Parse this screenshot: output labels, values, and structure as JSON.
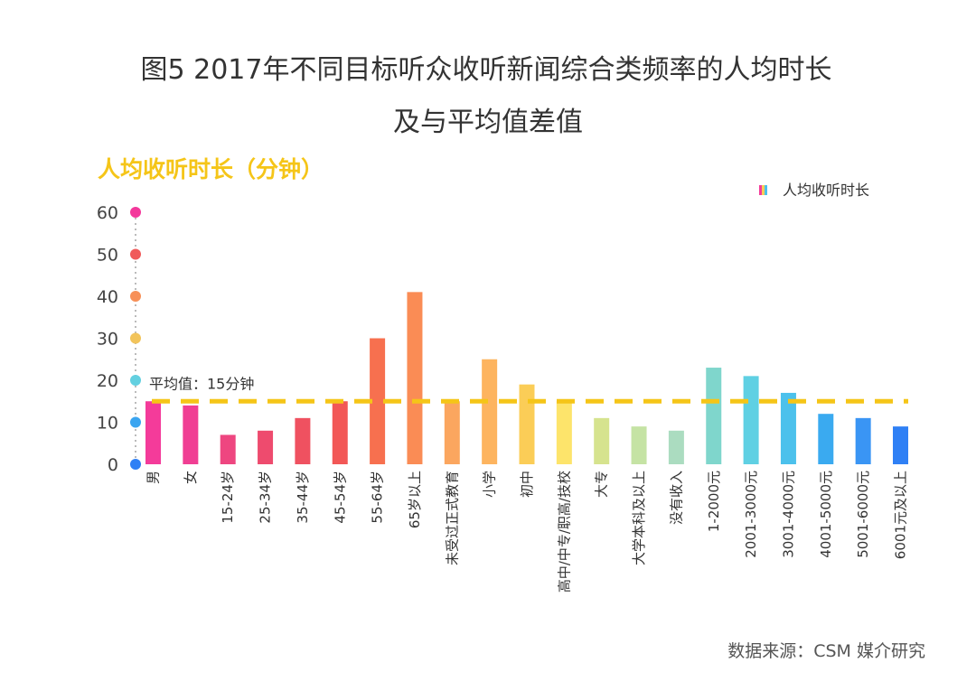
{
  "title_line1": "图5 2017年不同目标听众收听新闻综合类频率的人均时长",
  "title_line2": "及与平均值差值",
  "source": "数据来源：CSM 媒介研究",
  "chart_data": {
    "type": "bar",
    "ylabel": "人均收听时长（分钟）",
    "legend": "人均收听时长",
    "legend_position": "top-right",
    "ylim": [
      0,
      60
    ],
    "yticks": [
      0,
      10,
      20,
      30,
      40,
      50,
      60
    ],
    "ytick_labels": [
      "0",
      "10",
      "20",
      "30",
      "40",
      "50",
      "60"
    ],
    "average": 15,
    "average_label": "平均值：15分钟",
    "categories": [
      "男",
      "女",
      "15-24岁",
      "25-34岁",
      "35-44岁",
      "45-54岁",
      "55-64岁",
      "65岁以上",
      "未受过正式教育",
      "小学",
      "初中",
      "高中/中专/职高/技校",
      "大专",
      "大学本科及以上",
      "没有收入",
      "1-2000元",
      "2001-3000元",
      "3001-4000元",
      "4001-5000元",
      "5001-6000元",
      "6001元及以上"
    ],
    "values": [
      15,
      14,
      7,
      8,
      11,
      15,
      30,
      41,
      15,
      25,
      19,
      15,
      11,
      9,
      8,
      23,
      21,
      17,
      12,
      11,
      9
    ],
    "colors": [
      "#f43b9a",
      "#f03e93",
      "#ee4680",
      "#ee4b6e",
      "#ef5160",
      "#f25756",
      "#f7704f",
      "#fa8c55",
      "#fba65f",
      "#fdb45f",
      "#fbcd57",
      "#fde46b",
      "#d6e38e",
      "#c5e3a4",
      "#abdcc0",
      "#7fd6cc",
      "#5fd0e3",
      "#4cc1ec",
      "#3aaaf0",
      "#3a95f4",
      "#2f80f5"
    ],
    "tick_dot_colors": [
      "#2f80f5",
      "#3ba5f0",
      "#63d0e0",
      "#f2c45b",
      "#f79058",
      "#f05a5a",
      "#f3389b"
    ],
    "average_color": "#f5c518",
    "axis_color": "#f5c518"
  }
}
